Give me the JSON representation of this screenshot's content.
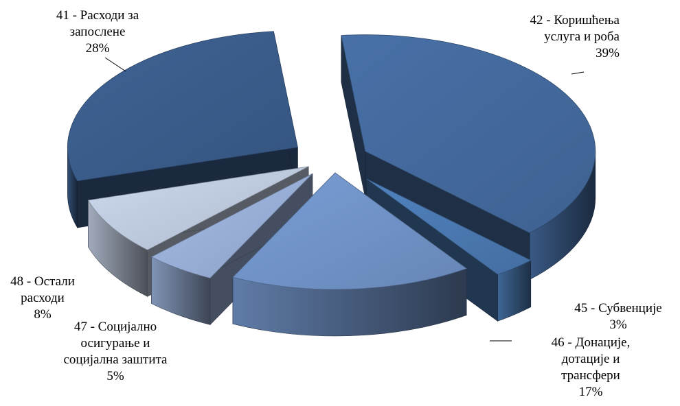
{
  "chart_data": {
    "type": "pie",
    "style": "3d-exploded",
    "title": "",
    "categories": [
      "42 - Коришћења услуга и роба",
      "45 - Субвенције",
      "46 - Донације, дотације и трансфери",
      "47 - Социјално осигурање и социјална заштита",
      "48 - Остали расходи",
      "41 - Расходи за запослене"
    ],
    "values": [
      39,
      3,
      17,
      5,
      8,
      28
    ],
    "value_unit": "%",
    "labels": [
      {
        "lines": [
          "42 - Коришћења",
          "услуга и роба",
          "39%"
        ]
      },
      {
        "lines": [
          "45 - Субвенције",
          "3%"
        ]
      },
      {
        "lines": [
          "46 - Донације,",
          "дотације и",
          "трансфери",
          "17%"
        ]
      },
      {
        "lines": [
          "47 - Социјално",
          "осигурање и",
          "социјална заштита",
          "5%"
        ]
      },
      {
        "lines": [
          "48 - Остали",
          "расходи",
          "8%"
        ]
      },
      {
        "lines": [
          "41 - Расходи за",
          "запослене",
          "28%"
        ]
      }
    ],
    "colors": [
      "#43699c",
      "#4a78b0",
      "#7092c6",
      "#98aed6",
      "#bdc9dd",
      "#3a5c8a"
    ],
    "legend": "none"
  }
}
